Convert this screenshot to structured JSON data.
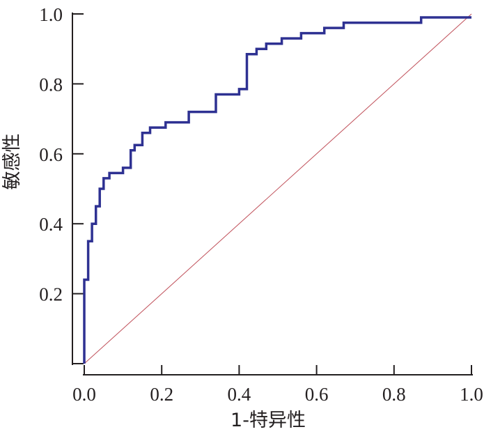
{
  "chart_data": {
    "type": "line",
    "xlabel": "1-特异性",
    "ylabel": "敏感性",
    "xlim": [
      0,
      1
    ],
    "ylim": [
      0,
      1
    ],
    "x_ticks": [
      0,
      0.2,
      0.4,
      0.6,
      0.8,
      1.0
    ],
    "x_tick_labels": [
      "0.0",
      "0.2",
      "0.4",
      "0.6",
      "0.8",
      "1.0"
    ],
    "y_ticks": [
      0.2,
      0.4,
      0.6,
      0.8,
      1.0
    ],
    "y_tick_labels": [
      "0.2",
      "0.4",
      "0.6",
      "0.8",
      "1.0"
    ],
    "grid": false,
    "series": [
      {
        "color": "#2e3192",
        "x": [
          0,
          0,
          0.01,
          0.01,
          0.02,
          0.02,
          0.03,
          0.03,
          0.04,
          0.04,
          0.05,
          0.05,
          0.065,
          0.065,
          0.075,
          0.075,
          0.1,
          0.1,
          0.12,
          0.12,
          0.13,
          0.13,
          0.15,
          0.15,
          0.17,
          0.17,
          0.21,
          0.21,
          0.27,
          0.27,
          0.34,
          0.34,
          0.4,
          0.4,
          0.42,
          0.42,
          0.445,
          0.445,
          0.47,
          0.47,
          0.51,
          0.51,
          0.56,
          0.56,
          0.62,
          0.62,
          0.67,
          0.67,
          0.87,
          0.87,
          1.0
        ],
        "y": [
          0,
          0.24,
          0.24,
          0.35,
          0.35,
          0.4,
          0.4,
          0.45,
          0.45,
          0.5,
          0.5,
          0.53,
          0.53,
          0.545,
          0.545,
          0.545,
          0.545,
          0.56,
          0.56,
          0.61,
          0.61,
          0.625,
          0.625,
          0.66,
          0.66,
          0.675,
          0.675,
          0.69,
          0.69,
          0.72,
          0.72,
          0.77,
          0.77,
          0.785,
          0.785,
          0.885,
          0.885,
          0.9,
          0.9,
          0.915,
          0.915,
          0.93,
          0.93,
          0.945,
          0.945,
          0.96,
          0.96,
          0.975,
          0.975,
          0.99,
          0.99
        ]
      },
      {
        "color": "#c0505a",
        "x": [
          0,
          1
        ],
        "y": [
          0,
          1
        ]
      }
    ]
  }
}
